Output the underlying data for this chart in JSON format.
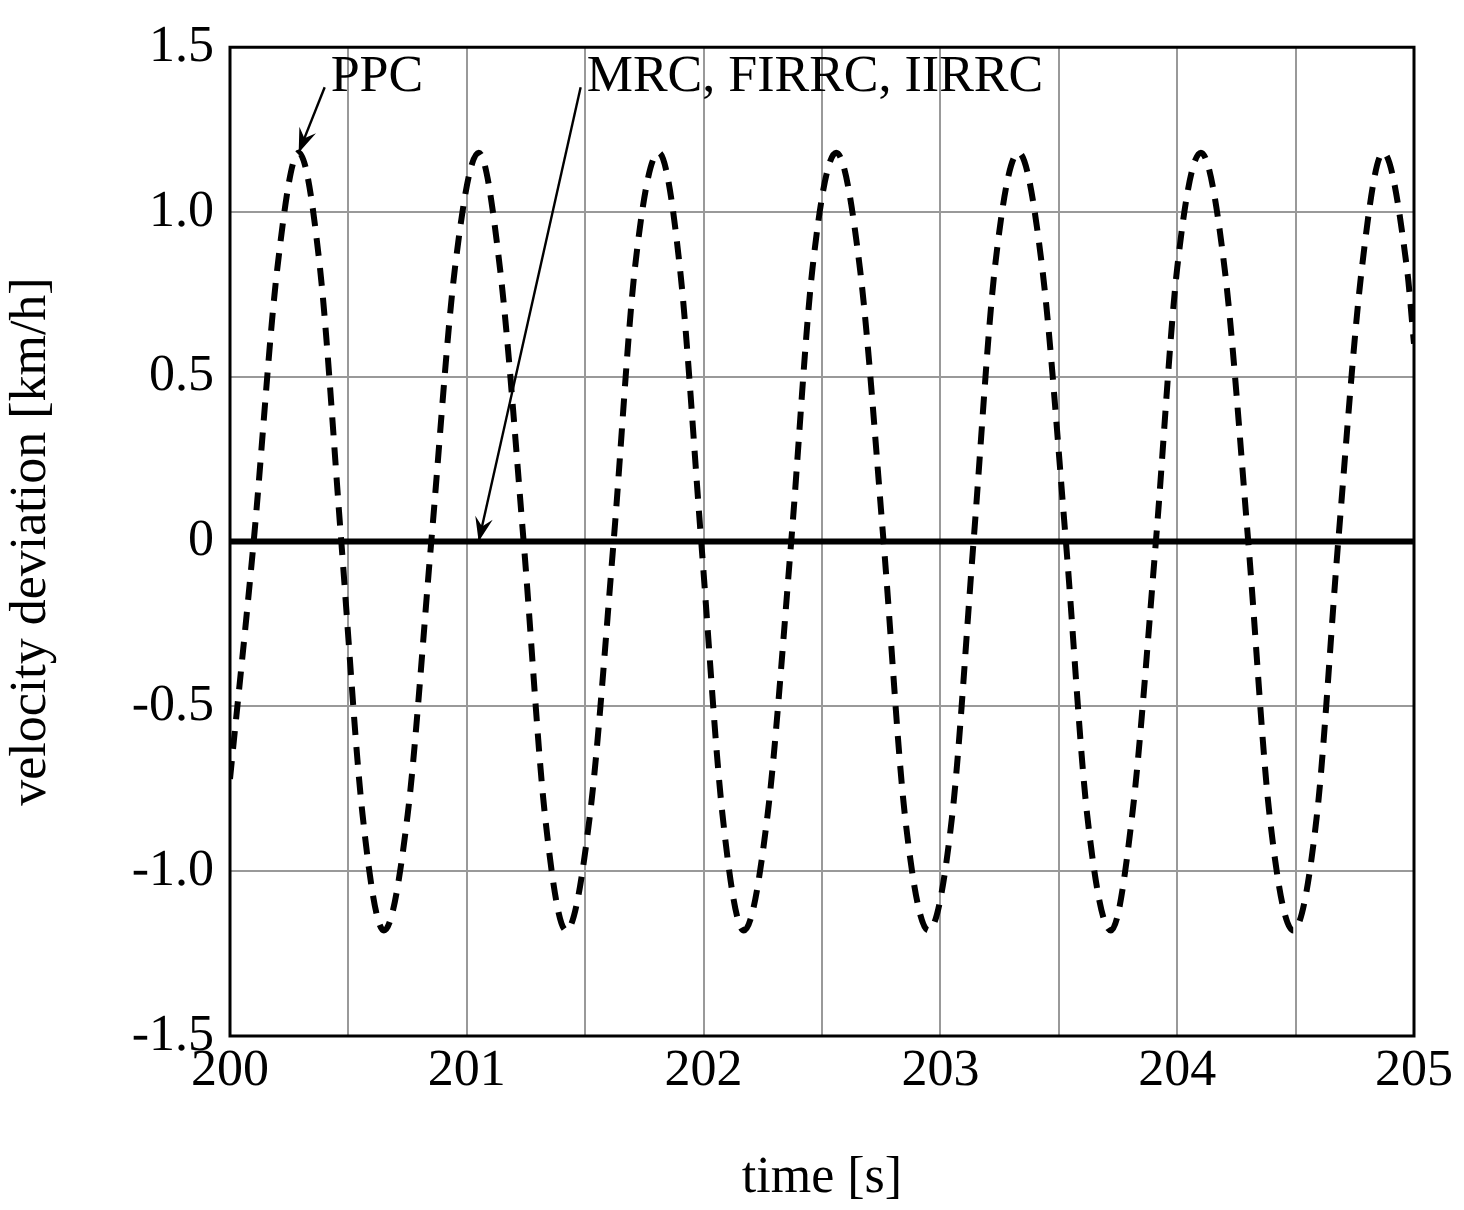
{
  "chart_data": {
    "type": "line",
    "xlabel": "time [s]",
    "ylabel": "velocity deviation [km/h]",
    "xlim": [
      200,
      205
    ],
    "ylim": [
      -1.5,
      1.5
    ],
    "xticks": [
      200,
      {
        "value": 200.5,
        "label": null
      },
      201,
      {
        "value": 201.5,
        "label": null
      },
      202,
      {
        "value": 202.5,
        "label": null
      },
      203,
      {
        "value": 203.5,
        "label": null
      },
      204,
      {
        "value": 204.5,
        "label": null
      },
      205
    ],
    "yticks": [
      -1.5,
      {
        "value": -1,
        "label": "-1.0"
      },
      -0.5,
      0,
      0.5,
      {
        "value": 1,
        "label": "1.0"
      },
      1.5
    ],
    "grid": true,
    "legend": false,
    "marker": "none",
    "annotations": [
      {
        "text": "PPC",
        "x": 200.29,
        "y": 1.18
      },
      {
        "text": "MRC, FIRRC, IIRRC",
        "x": 201.05,
        "y": 0
      }
    ],
    "series": [
      {
        "color": "#000000",
        "line_style": "dashed",
        "x": [
          200,
          200.1,
          200.2,
          200.29,
          200.38,
          200.47,
          200.56,
          200.65,
          200.75,
          200.85,
          200.95,
          201.05,
          201.14,
          201.24,
          201.33,
          201.42,
          201.52,
          201.62,
          201.71,
          201.81,
          201.9,
          201.99,
          202.08,
          202.17,
          202.27,
          202.37,
          202.46,
          202.56,
          202.66,
          202.76,
          202.85,
          202.95,
          203.05,
          203.14,
          203.23,
          203.33,
          203.43,
          203.53,
          203.62,
          203.72,
          203.81,
          203.91,
          204,
          204.1,
          204.2,
          204.3,
          204.39,
          204.49,
          204.59,
          204.68,
          204.78,
          204.87,
          204.97,
          205
        ],
        "values": [
          -0.72,
          0,
          0.83,
          1.18,
          0.83,
          0,
          -0.83,
          -1.18,
          -0.83,
          0,
          0.83,
          1.18,
          0.83,
          0,
          -0.83,
          -1.18,
          -0.83,
          0,
          0.83,
          1.18,
          0.83,
          0,
          -0.83,
          -1.18,
          -0.83,
          0,
          0.83,
          1.18,
          0.83,
          0,
          -0.83,
          -1.18,
          -0.83,
          0,
          0.83,
          1.18,
          0.83,
          0,
          -0.83,
          -1.18,
          -0.83,
          0,
          0.83,
          1.18,
          0.83,
          0,
          -0.83,
          -1.18,
          -0.83,
          0,
          0.83,
          1.18,
          0.83,
          0.6
        ]
      },
      {
        "color": "#000000",
        "line_style": "solid",
        "x": [
          200,
          205
        ],
        "values": [
          0,
          0
        ]
      }
    ]
  }
}
